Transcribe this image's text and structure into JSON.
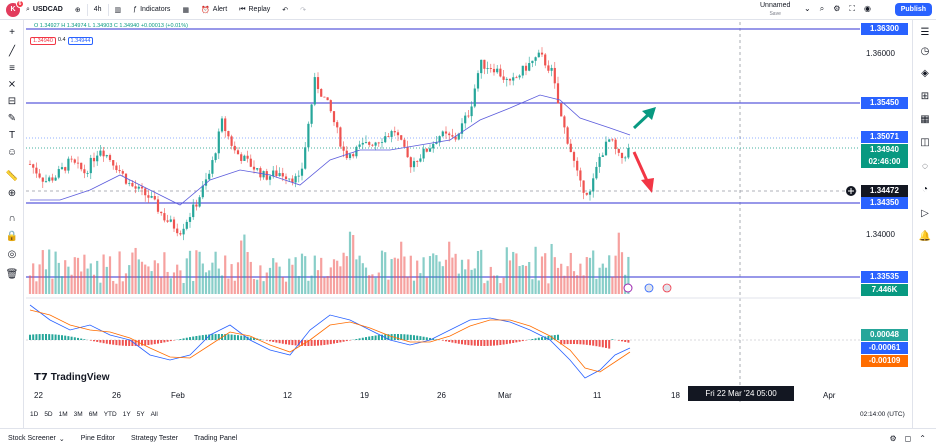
{
  "toolbar": {
    "avatar_letter": "K",
    "notif_count": "6",
    "symbol": "USDCAD",
    "interval": "4h",
    "indicators_label": "Indicators",
    "alert_label": "Alert",
    "replay_label": "Replay",
    "layout_name": "Unnamed",
    "layout_status": "Save",
    "publish_label": "Publish"
  },
  "legend": {
    "ohlc": "O 1.34927  H 1.34974  L 1.34903  C 1.34940 +0.00013 (+0.01%)",
    "bid": "1.34940",
    "spread": "0.4",
    "ask": "1.34944"
  },
  "price_axis": {
    "ticks": [
      "1.36000",
      "1.34000"
    ],
    "tags": [
      {
        "label": "1.36300",
        "color": "#2962ff"
      },
      {
        "label": "1.35450",
        "color": "#2962ff"
      },
      {
        "label": "1.35071",
        "color": "#2962ff"
      },
      {
        "label": "1.34940",
        "color": "#089981"
      },
      {
        "label": "02:46:00",
        "color": "#089981"
      },
      {
        "label": "1.34472",
        "color": "#131722"
      },
      {
        "label": "1.34350",
        "color": "#2962ff"
      },
      {
        "label": "1.33535",
        "color": "#2962ff"
      },
      {
        "label": "7.446K",
        "color": "#089981"
      },
      {
        "label": "0.00048",
        "color": "#26a69a"
      },
      {
        "label": "-0.00061",
        "color": "#2962ff"
      },
      {
        "label": "-0.00109",
        "color": "#ff6d00"
      }
    ]
  },
  "time_axis": {
    "labels": [
      "22",
      "26",
      "Feb",
      "12",
      "19",
      "26",
      "Mar",
      "11",
      "18",
      "Apr"
    ],
    "crosshair_date": "Fri 22 Mar '24   05:00"
  },
  "brand": "TradingView",
  "ranges": [
    "1D",
    "5D",
    "1M",
    "3M",
    "6M",
    "YTD",
    "1Y",
    "5Y",
    "All"
  ],
  "utc_time": "02:14:00 (UTC)",
  "bottom_tabs": [
    "Stock Screener",
    "Pine Editor",
    "Strategy Tester",
    "Trading Panel"
  ],
  "chart_data": {
    "type": "candlestick",
    "symbol": "USDCAD",
    "interval": "4h",
    "horizontal_levels": [
      1.363,
      1.3545,
      1.3435,
      1.33535
    ],
    "price_range": [
      1.3315,
      1.3645
    ],
    "last_price": 1.3494,
    "ma_value": 1.35071,
    "crosshair_price": 1.34472,
    "macd": {
      "histogram": 0.00048,
      "macd": -0.00061,
      "signal": -0.00109
    }
  }
}
